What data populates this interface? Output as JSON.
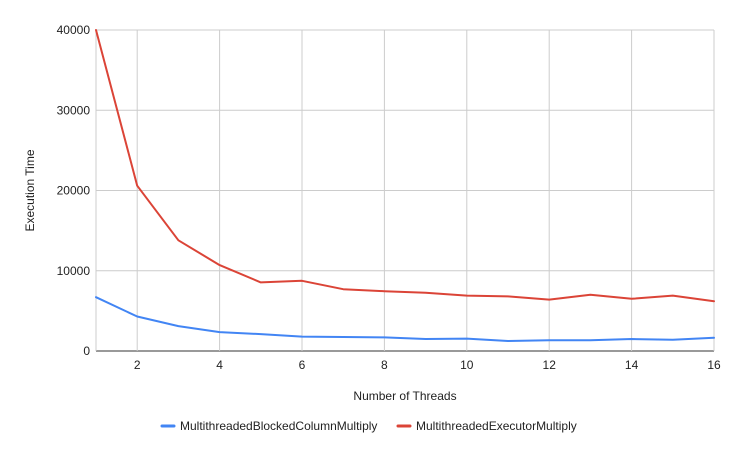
{
  "chart_data": {
    "type": "line",
    "title": "",
    "xlabel": "Number of Threads",
    "ylabel": "Execution Time",
    "x": [
      1,
      2,
      3,
      4,
      5,
      6,
      7,
      8,
      9,
      10,
      11,
      12,
      13,
      14,
      15,
      16
    ],
    "x_ticks": [
      2,
      4,
      6,
      8,
      10,
      12,
      14,
      16
    ],
    "xlim": [
      1,
      16
    ],
    "y_ticks": [
      0,
      10000,
      20000,
      30000,
      40000
    ],
    "ylim": [
      0,
      40000
    ],
    "grid": true,
    "legend_position": "bottom",
    "series": [
      {
        "name": "MultithreadedBlockedColumnMultiply",
        "color": "#4285f4",
        "values": [
          6700,
          4300,
          3100,
          2350,
          2100,
          1800,
          1750,
          1700,
          1500,
          1550,
          1250,
          1350,
          1350,
          1500,
          1400,
          1650
        ]
      },
      {
        "name": "MultithreadedExecutorMultiply",
        "color": "#db4437",
        "values": [
          40000,
          20600,
          13800,
          10700,
          8550,
          8750,
          7700,
          7450,
          7250,
          6900,
          6800,
          6400,
          7000,
          6500,
          6900,
          6200
        ]
      }
    ]
  }
}
